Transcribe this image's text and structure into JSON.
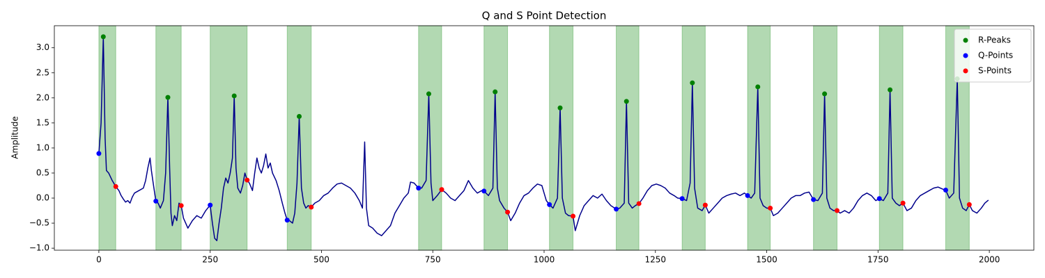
{
  "chart_data": {
    "type": "line",
    "title": "Q and S Point Detection",
    "ylabel": "Amplitude",
    "xlim": [
      -100,
      2100
    ],
    "ylim": [
      -1.04,
      3.44
    ],
    "xticks": [
      0,
      250,
      500,
      750,
      1000,
      1250,
      1500,
      1750,
      2000
    ],
    "yticks": [
      {
        "value": -1,
        "label": "−1.0"
      },
      {
        "value": -0.5,
        "label": "−0.5"
      },
      {
        "value": 0,
        "label": "0.0"
      },
      0.5,
      {
        "value": 1,
        "label": "1.0"
      },
      1.5,
      {
        "value": 2,
        "label": "2.0"
      },
      2.5,
      {
        "value": 3,
        "label": "3.0"
      }
    ],
    "grid": false,
    "legend": "upper right",
    "span_color": "green",
    "span_opacity": 0.3,
    "series": [
      {
        "color": "#00008b",
        "x": [
          0,
          5,
          10,
          14,
          17,
          22,
          30,
          38,
          45,
          50,
          55,
          60,
          65,
          70,
          75,
          80,
          90,
          100,
          105,
          110,
          115,
          118,
          122,
          128,
          133,
          138,
          145,
          150,
          155,
          159,
          162,
          165,
          170,
          175,
          180,
          185,
          190,
          195,
          200,
          210,
          220,
          230,
          240,
          250,
          255,
          260,
          265,
          270,
          275,
          280,
          285,
          290,
          295,
          300,
          304,
          308,
          312,
          318,
          323,
          328,
          333,
          338,
          345,
          350,
          355,
          360,
          365,
          370,
          375,
          380,
          385,
          390,
          398,
          405,
          412,
          418,
          423,
          428,
          435,
          440,
          445,
          450,
          455,
          460,
          465,
          470,
          477,
          485,
          495,
          505,
          515,
          525,
          535,
          545,
          555,
          565,
          575,
          585,
          592,
          597,
          601,
          606,
          615,
          625,
          635,
          645,
          655,
          665,
          675,
          685,
          695,
          700,
          708,
          718,
          725,
          735,
          741,
          746,
          750,
          760,
          770,
          780,
          790,
          800,
          810,
          820,
          830,
          840,
          850,
          860,
          865,
          875,
          885,
          890,
          895,
          900,
          910,
          918,
          925,
          935,
          945,
          955,
          965,
          975,
          985,
          995,
          1000,
          1005,
          1012,
          1020,
          1030,
          1036,
          1041,
          1048,
          1055,
          1065,
          1070,
          1080,
          1090,
          1100,
          1110,
          1120,
          1130,
          1140,
          1150,
          1162,
          1170,
          1180,
          1185,
          1190,
          1198,
          1205,
          1213,
          1222,
          1232,
          1242,
          1252,
          1262,
          1272,
          1282,
          1292,
          1300,
          1310,
          1320,
          1328,
          1333,
          1338,
          1345,
          1355,
          1362,
          1370,
          1380,
          1390,
          1400,
          1410,
          1420,
          1430,
          1440,
          1450,
          1457,
          1465,
          1473,
          1480,
          1485,
          1492,
          1500,
          1508,
          1515,
          1525,
          1535,
          1545,
          1555,
          1565,
          1575,
          1585,
          1595,
          1605,
          1615,
          1625,
          1630,
          1635,
          1642,
          1650,
          1658,
          1665,
          1675,
          1685,
          1695,
          1705,
          1715,
          1725,
          1735,
          1745,
          1753,
          1762,
          1772,
          1777,
          1782,
          1790,
          1798,
          1806,
          1815,
          1825,
          1835,
          1845,
          1855,
          1865,
          1875,
          1885,
          1895,
          1902,
          1910,
          1920,
          1928,
          1933,
          1940,
          1948,
          1955,
          1962,
          1972,
          1982,
          1990,
          1998
        ],
        "values": [
          0.89,
          1.5,
          3.22,
          1.2,
          0.55,
          0.5,
          0.35,
          0.23,
          0.15,
          0.05,
          -0.02,
          -0.08,
          -0.05,
          -0.1,
          0.02,
          0.1,
          0.15,
          0.2,
          0.35,
          0.6,
          0.8,
          0.55,
          0.3,
          -0.06,
          -0.1,
          -0.2,
          -0.05,
          0.5,
          2.01,
          0.6,
          -0.3,
          -0.55,
          -0.35,
          -0.45,
          -0.1,
          -0.15,
          -0.4,
          -0.5,
          -0.6,
          -0.45,
          -0.35,
          -0.4,
          -0.25,
          -0.14,
          -0.5,
          -0.8,
          -0.85,
          -0.5,
          -0.2,
          0.2,
          0.4,
          0.3,
          0.5,
          0.8,
          2.04,
          0.6,
          0.2,
          0.1,
          0.25,
          0.5,
          0.36,
          0.3,
          0.15,
          0.5,
          0.8,
          0.6,
          0.5,
          0.65,
          0.88,
          0.6,
          0.7,
          0.5,
          0.35,
          0.15,
          -0.1,
          -0.3,
          -0.44,
          -0.45,
          -0.5,
          -0.3,
          0.3,
          1.63,
          0.2,
          -0.1,
          -0.2,
          -0.15,
          -0.18,
          -0.1,
          -0.05,
          0.05,
          0.1,
          0.2,
          0.28,
          0.3,
          0.25,
          0.2,
          0.1,
          -0.05,
          -0.2,
          1.12,
          -0.2,
          -0.55,
          -0.6,
          -0.7,
          -0.75,
          -0.65,
          -0.55,
          -0.3,
          -0.15,
          0.0,
          0.1,
          0.32,
          0.3,
          0.2,
          0.2,
          0.35,
          2.08,
          0.3,
          -0.05,
          0.05,
          0.17,
          0.1,
          0.0,
          -0.05,
          0.05,
          0.15,
          0.35,
          0.2,
          0.1,
          0.15,
          0.14,
          0.05,
          0.2,
          2.12,
          0.2,
          -0.05,
          -0.2,
          -0.28,
          -0.45,
          -0.3,
          -0.1,
          0.05,
          0.1,
          0.2,
          0.28,
          0.25,
          0.1,
          -0.05,
          -0.13,
          -0.2,
          0.0,
          1.8,
          0.0,
          -0.3,
          -0.35,
          -0.36,
          -0.65,
          -0.35,
          -0.15,
          -0.05,
          0.05,
          0.0,
          0.08,
          -0.05,
          -0.15,
          -0.22,
          -0.2,
          -0.1,
          1.93,
          -0.1,
          -0.2,
          -0.15,
          -0.11,
          0.0,
          0.15,
          0.25,
          0.28,
          0.25,
          0.2,
          0.1,
          0.05,
          0.0,
          -0.01,
          -0.05,
          0.3,
          2.3,
          0.2,
          -0.2,
          -0.25,
          -0.14,
          -0.3,
          -0.2,
          -0.1,
          0.0,
          0.05,
          0.08,
          0.1,
          0.05,
          0.1,
          0.05,
          0.0,
          0.1,
          2.22,
          0.0,
          -0.15,
          -0.2,
          -0.2,
          -0.35,
          -0.3,
          -0.2,
          -0.1,
          0.0,
          0.05,
          0.05,
          0.1,
          0.12,
          -0.03,
          -0.05,
          0.1,
          2.08,
          0.0,
          -0.2,
          -0.25,
          -0.25,
          -0.3,
          -0.25,
          -0.3,
          -0.2,
          -0.05,
          0.05,
          0.1,
          0.05,
          -0.05,
          -0.01,
          -0.05,
          0.1,
          2.16,
          0.0,
          -0.1,
          -0.15,
          -0.1,
          -0.25,
          -0.2,
          -0.05,
          0.05,
          0.1,
          0.15,
          0.2,
          0.22,
          0.18,
          0.16,
          0.0,
          0.1,
          2.38,
          0.0,
          -0.2,
          -0.25,
          -0.13,
          -0.25,
          -0.3,
          -0.2,
          -0.1,
          -0.04
        ]
      },
      {
        "name": "R-Peaks",
        "color": "green",
        "marker": true,
        "x": [
          10,
          155,
          304,
          450,
          741,
          890,
          1036,
          1185,
          1333,
          1480,
          1630,
          1777,
          1928
        ],
        "values": [
          3.22,
          2.01,
          2.04,
          1.63,
          2.08,
          2.12,
          1.8,
          1.93,
          2.3,
          2.22,
          2.08,
          2.16,
          2.38
        ]
      },
      {
        "name": "Q-Points",
        "color": "blue",
        "marker": true,
        "x": [
          0,
          128,
          250,
          423,
          718,
          865,
          1012,
          1162,
          1310,
          1457,
          1605,
          1753,
          1902
        ],
        "values": [
          0.89,
          -0.06,
          -0.14,
          -0.44,
          0.2,
          0.14,
          -0.13,
          -0.22,
          -0.01,
          0.05,
          -0.03,
          -0.01,
          0.16
        ]
      },
      {
        "name": "S-Points",
        "color": "red",
        "marker": true,
        "x": [
          38,
          185,
          333,
          477,
          770,
          918,
          1065,
          1213,
          1362,
          1508,
          1658,
          1806,
          1955
        ],
        "values": [
          0.23,
          -0.15,
          0.36,
          -0.18,
          0.17,
          -0.28,
          -0.36,
          -0.11,
          -0.14,
          -0.2,
          -0.25,
          -0.1,
          -0.13
        ]
      }
    ]
  }
}
